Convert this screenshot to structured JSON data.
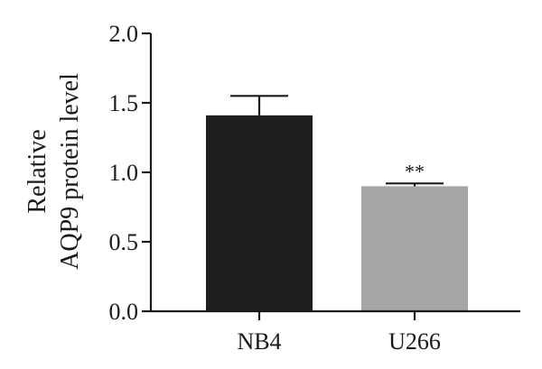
{
  "chart_data": {
    "type": "bar",
    "categories": [
      "NB4",
      "U266"
    ],
    "series": [
      {
        "values": [
          1.41,
          0.9
        ],
        "errors": [
          0.14,
          0.02
        ],
        "colors": [
          "#1e1e1e",
          "#a6a6a6"
        ]
      }
    ],
    "ylabel_lines": [
      "Relative",
      "AQP9 protein level"
    ],
    "ylim": [
      0.0,
      2.0
    ],
    "yticks": [
      0.0,
      0.5,
      1.0,
      1.5,
      2.0
    ],
    "ytick_labels": [
      "0.0",
      "0.5",
      "1.0",
      "1.5",
      "2.0"
    ],
    "annotations": [
      {
        "category": "U266",
        "text": "**"
      }
    ]
  }
}
